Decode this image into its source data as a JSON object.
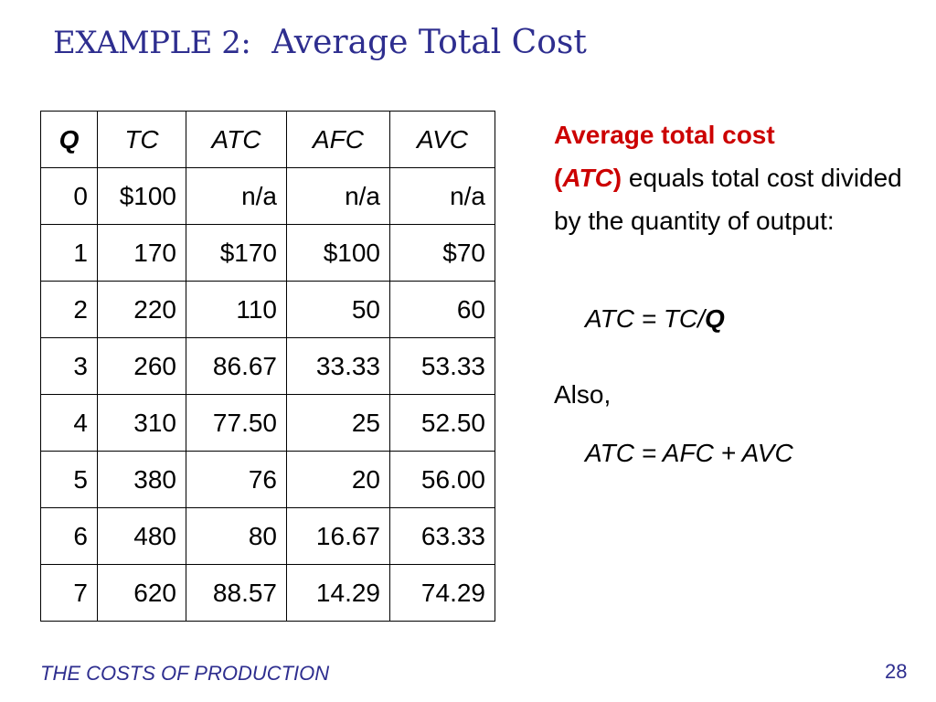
{
  "title": {
    "prefix": "EXAMPLE 2:",
    "main": "Average Total Cost"
  },
  "table": {
    "headers": [
      "Q",
      "TC",
      "ATC",
      "AFC",
      "AVC"
    ],
    "rows": [
      [
        "0",
        "$100",
        "n/a",
        "n/a",
        "n/a"
      ],
      [
        "1",
        "170",
        "$170",
        "$100",
        "$70"
      ],
      [
        "2",
        "220",
        "110",
        "50",
        "60"
      ],
      [
        "3",
        "260",
        "86.67",
        "33.33",
        "53.33"
      ],
      [
        "4",
        "310",
        "77.50",
        "25",
        "52.50"
      ],
      [
        "5",
        "380",
        "76",
        "20",
        "56.00"
      ],
      [
        "6",
        "480",
        "80",
        "16.67",
        "63.33"
      ],
      [
        "7",
        "620",
        "88.57",
        "14.29",
        "74.29"
      ]
    ]
  },
  "definition": {
    "term": "Average total cost",
    "abbr_open": "(",
    "abbr": "ATC",
    "abbr_close": ")",
    "text": " equals total cost divided by the quantity of output:"
  },
  "formula1": {
    "lhs": "ATC = TC/",
    "q": "Q"
  },
  "also": "Also,",
  "formula2": "ATC = AFC + AVC",
  "footer": "THE COSTS OF PRODUCTION",
  "page_number": "28",
  "colors": {
    "title": "#2e2e8f",
    "highlight": "#cc0000"
  }
}
